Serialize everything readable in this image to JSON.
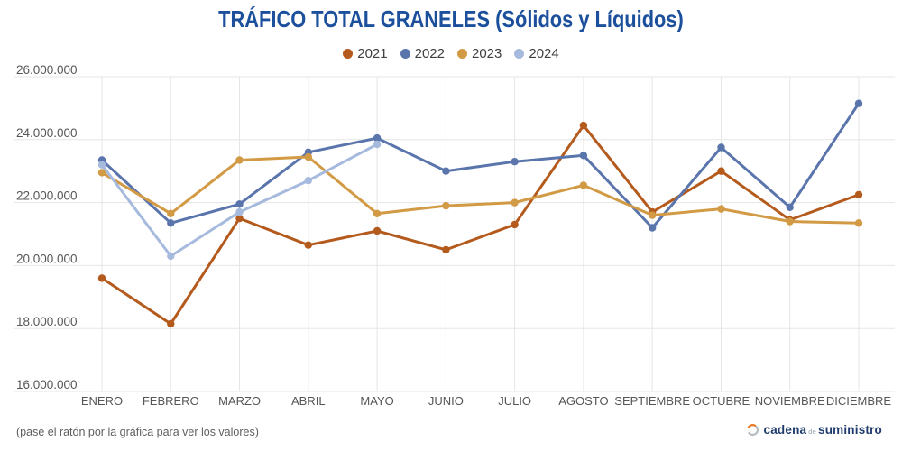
{
  "page": {
    "hint": "(pase el ratón por la gráfica para ver los valores)",
    "brand": {
      "part1": "cadena",
      "part2": "de",
      "part3": "suministro"
    }
  },
  "colors": {
    "title-color": "#1c509c",
    "hint-color": "#5f5f5f",
    "brand-navy": "#1e3b6b",
    "brand-orange": "#e87722",
    "brand-gray": "#b7bcc3",
    "grid": "#e5e5e5",
    "axis-label": "#565656"
  },
  "chart_data": {
    "type": "line",
    "title": "TRÁFICO TOTAL GRANELES (Sólidos y Líquidos)",
    "xlabel": "",
    "ylabel": "",
    "ylim": [
      16000000,
      26000000
    ],
    "ytick_step": 2000000,
    "ytick_labels": [
      "16.000.000",
      "18.000.000",
      "20.000.000",
      "22.000.000",
      "24.000.000",
      "26.000.000"
    ],
    "grid": true,
    "legend_position": "top",
    "categories": [
      "ENERO",
      "FEBRERO",
      "MARZO",
      "ABRIL",
      "MAYO",
      "JUNIO",
      "JULIO",
      "AGOSTO",
      "SEPTIEMBRE",
      "OCTUBRE",
      "NOVIEMBRE",
      "DICIEMBRE"
    ],
    "series": [
      {
        "name": "2021",
        "color": "#b45a1d",
        "values": [
          19600000,
          18150000,
          21500000,
          20650000,
          21100000,
          20500000,
          21300000,
          24450000,
          21700000,
          23000000,
          21450000,
          22250000
        ]
      },
      {
        "name": "2022",
        "color": "#5a74ac",
        "values": [
          23350000,
          21350000,
          21950000,
          23600000,
          24050000,
          23000000,
          23300000,
          23500000,
          21200000,
          23750000,
          21850000,
          25150000
        ]
      },
      {
        "name": "2023",
        "color": "#d29a44",
        "values": [
          22950000,
          21650000,
          23350000,
          23450000,
          21650000,
          21900000,
          22000000,
          22550000,
          21600000,
          21800000,
          21400000,
          21350000
        ]
      },
      {
        "name": "2024",
        "color": "#a6bade",
        "values": [
          23200000,
          20300000,
          21700000,
          22700000,
          23850000,
          null,
          null,
          null,
          null,
          null,
          null,
          null
        ]
      }
    ]
  }
}
